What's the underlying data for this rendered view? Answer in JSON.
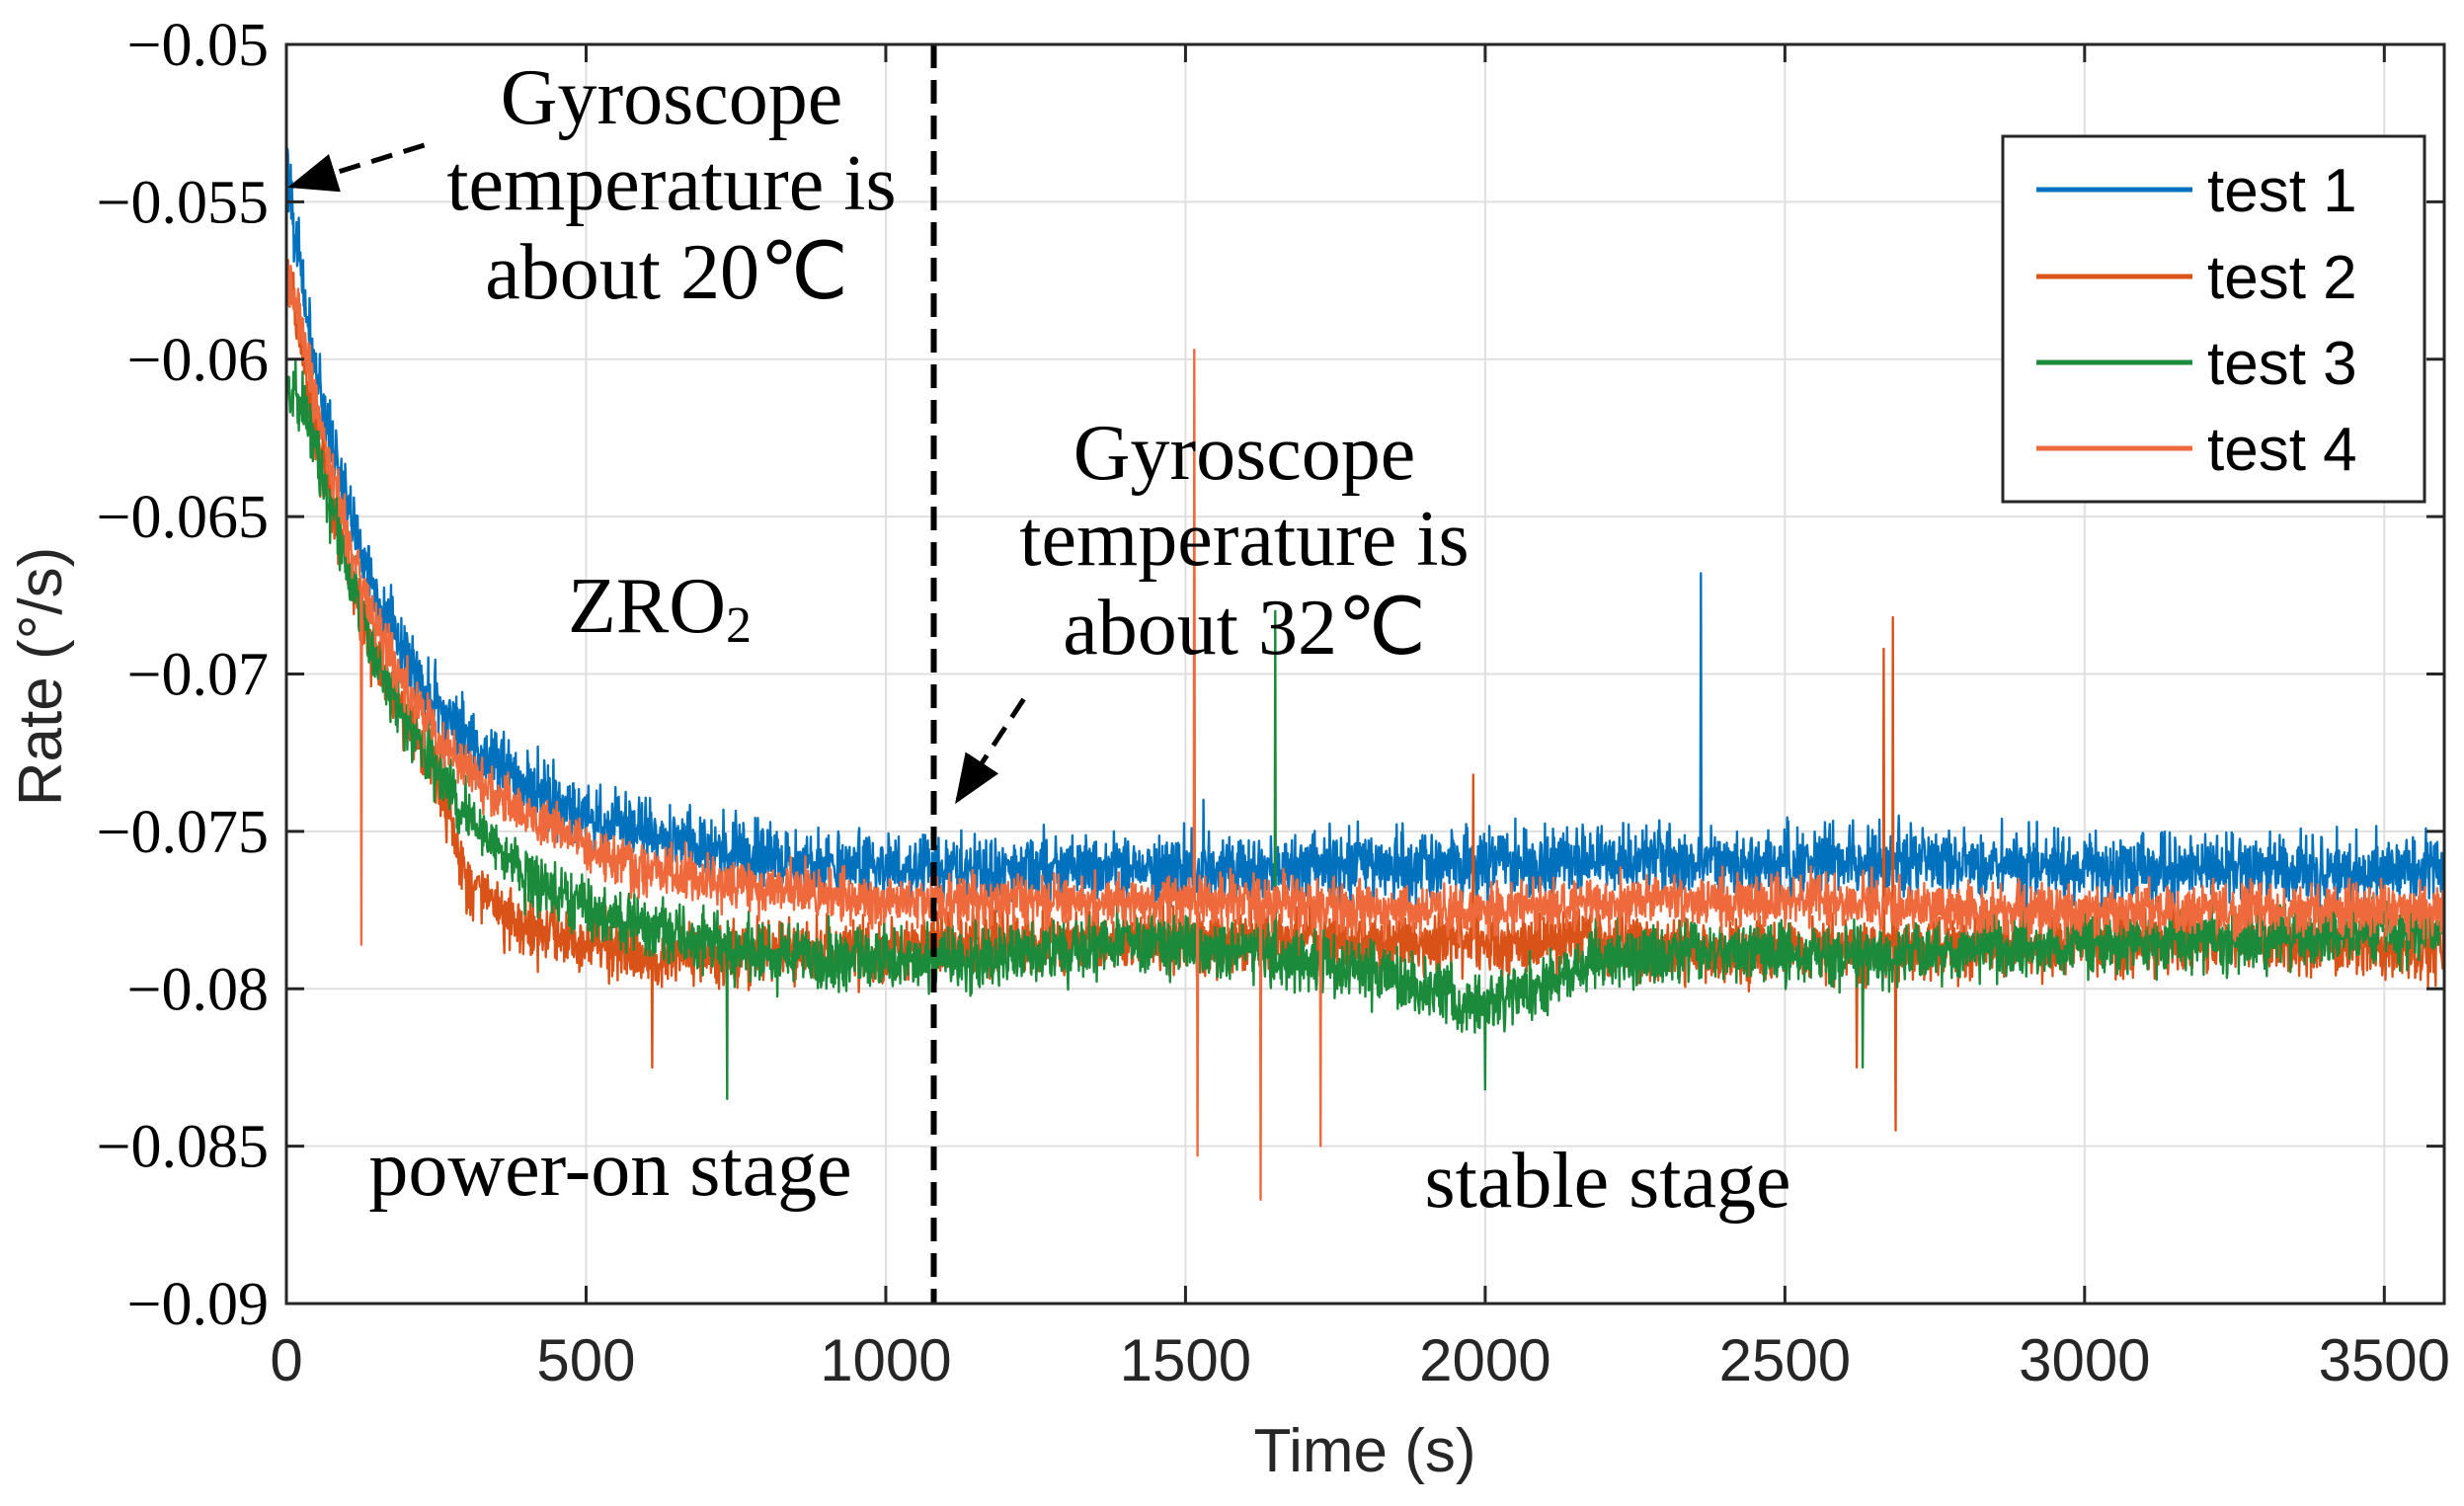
{
  "chart_data": {
    "type": "line",
    "title": "",
    "xlabel": "Time (s)",
    "ylabel": "Rate (°/s)",
    "xlim": [
      0,
      3600
    ],
    "ylim": [
      -0.09,
      -0.05
    ],
    "xticks": [
      0,
      500,
      1000,
      1500,
      2000,
      2500,
      3000,
      3500
    ],
    "yticks": [
      -0.05,
      -0.055,
      -0.06,
      -0.065,
      -0.07,
      -0.075,
      -0.08,
      -0.085,
      -0.09
    ],
    "xtick_labels": [
      "0",
      "500",
      "1000",
      "1500",
      "2000",
      "2500",
      "3000",
      "3500"
    ],
    "ytick_labels": [
      "−0.05",
      "−0.055",
      "−0.06",
      "−0.065",
      "−0.07",
      "−0.075",
      "−0.08",
      "−0.085",
      "−0.09"
    ],
    "grid": true,
    "legend_position": "top-right",
    "x": [
      0,
      25,
      50,
      100,
      150,
      200,
      250,
      300,
      400,
      500,
      600,
      700,
      800,
      900,
      1000,
      1080,
      1200,
      1400,
      1600,
      1800,
      2000,
      2200,
      2400,
      2600,
      2800,
      3000,
      3200,
      3400,
      3600
    ],
    "series": [
      {
        "name": "test 1",
        "color": "#0072BD",
        "noise": 0.0012,
        "values": [
          -0.0535,
          -0.0575,
          -0.0605,
          -0.0645,
          -0.0675,
          -0.0695,
          -0.071,
          -0.072,
          -0.0735,
          -0.0745,
          -0.075,
          -0.0755,
          -0.0758,
          -0.076,
          -0.0762,
          -0.0762,
          -0.0762,
          -0.0762,
          -0.0762,
          -0.076,
          -0.076,
          -0.076,
          -0.076,
          -0.076,
          -0.076,
          -0.0762,
          -0.0762,
          -0.0762,
          -0.0762
        ],
        "spikes": [
          [
            2360,
            -0.0668
          ],
          [
            1530,
            -0.074
          ],
          [
            2690,
            -0.0745
          ]
        ]
      },
      {
        "name": "test 2",
        "color": "#D95319",
        "noise": 0.0011,
        "values": [
          -0.057,
          -0.0595,
          -0.0625,
          -0.0665,
          -0.0695,
          -0.0715,
          -0.073,
          -0.0765,
          -0.078,
          -0.0785,
          -0.079,
          -0.079,
          -0.0788,
          -0.0788,
          -0.0788,
          -0.0785,
          -0.0785,
          -0.0785,
          -0.0785,
          -0.0785,
          -0.0785,
          -0.0785,
          -0.0788,
          -0.0788,
          -0.0788,
          -0.0785,
          -0.0785,
          -0.0785,
          -0.0788
        ],
        "spikes": [
          [
            610,
            -0.0825
          ],
          [
            2680,
            -0.0682
          ],
          [
            2665,
            -0.0692
          ],
          [
            2685,
            -0.0845
          ],
          [
            2620,
            -0.0825
          ],
          [
            1980,
            -0.0732
          ]
        ]
      },
      {
        "name": "test 3",
        "color": "#1B8A3A",
        "noise": 0.0011,
        "values": [
          -0.061,
          -0.0615,
          -0.063,
          -0.0665,
          -0.0695,
          -0.0715,
          -0.073,
          -0.0745,
          -0.0765,
          -0.0775,
          -0.078,
          -0.0785,
          -0.079,
          -0.079,
          -0.079,
          -0.079,
          -0.079,
          -0.0785,
          -0.0788,
          -0.0795,
          -0.0805,
          -0.079,
          -0.0788,
          -0.079,
          -0.0788,
          -0.0785,
          -0.0785,
          -0.0782,
          -0.0782
        ],
        "spikes": [
          [
            735,
            -0.0835
          ],
          [
            1650,
            -0.068
          ],
          [
            2000,
            -0.0832
          ],
          [
            2630,
            -0.0825
          ]
        ]
      },
      {
        "name": "test 4",
        "color": "#EE6A3C",
        "noise": 0.0009,
        "values": [
          -0.0575,
          -0.059,
          -0.0615,
          -0.0655,
          -0.0685,
          -0.0705,
          -0.072,
          -0.073,
          -0.0745,
          -0.0755,
          -0.0762,
          -0.0765,
          -0.0768,
          -0.077,
          -0.0772,
          -0.0772,
          -0.0772,
          -0.0772,
          -0.0772,
          -0.0775,
          -0.0775,
          -0.0772,
          -0.0772,
          -0.0772,
          -0.0775,
          -0.0775,
          -0.0775,
          -0.0775,
          -0.0775
        ],
        "spikes": [
          [
            125,
            -0.0786
          ],
          [
            1515,
            -0.0597
          ],
          [
            1520,
            -0.0853
          ],
          [
            1625,
            -0.0867
          ],
          [
            1725,
            -0.085
          ]
        ]
      }
    ],
    "divider_x": 1080,
    "annotations": {
      "gyro_20_lines": [
        "Gyroscope",
        "temperature is",
        "about 20℃"
      ],
      "gyro_20_arrow": {
        "from": [
          230,
          -0.0532
        ],
        "to": [
          0,
          -0.0545
        ]
      },
      "gyro_32_lines": [
        "Gyroscope",
        "temperature is",
        "about 32℃"
      ],
      "gyro_32_arrow": {
        "from": [
          1230,
          -0.0708
        ],
        "to": [
          1120,
          -0.074
        ]
      },
      "zro_main": "ZRO",
      "zro_sub": "2",
      "power_on": "power-on stage",
      "stable": "stable stage"
    }
  }
}
